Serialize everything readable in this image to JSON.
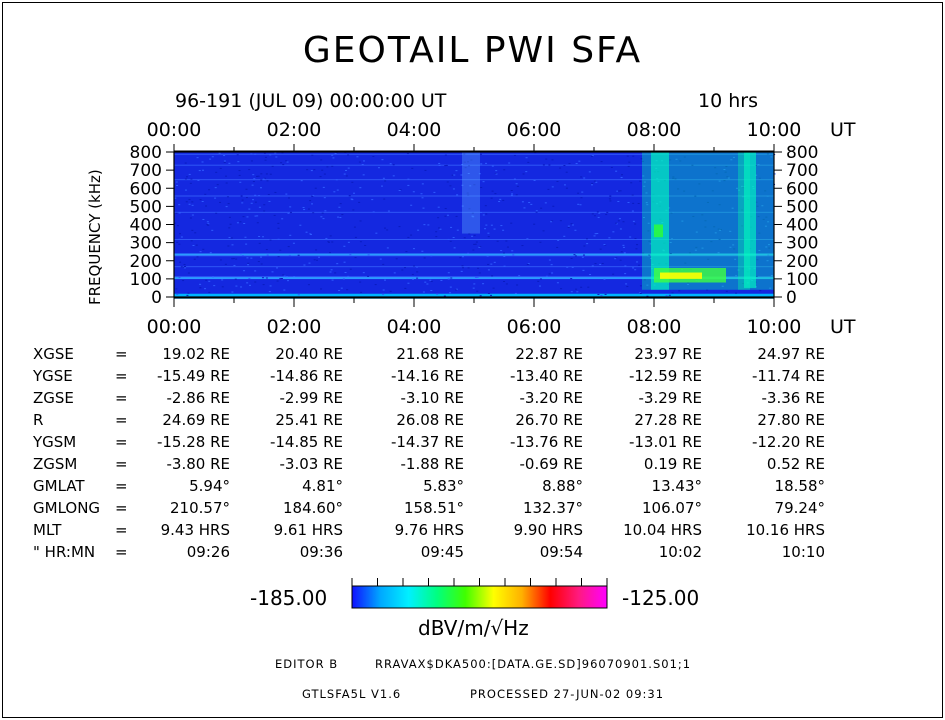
{
  "header": {
    "title": "GEOTAIL PWI SFA",
    "start": "96-191 (JUL 09) 00:00:00 UT",
    "duration": "10 hrs"
  },
  "chart_data": {
    "type": "heatmap",
    "title": "GEOTAIL PWI SFA",
    "xlabel": "UT",
    "ylabel": "FREQUENCY (kHz)",
    "x_ticks": [
      "00:00",
      "02:00",
      "04:00",
      "06:00",
      "08:00",
      "10:00"
    ],
    "x_unit": "UT",
    "xlim_hours": [
      0,
      10
    ],
    "y_ticks": [
      0,
      100,
      200,
      300,
      400,
      500,
      600,
      700,
      800
    ],
    "ylim": [
      0,
      800
    ],
    "colorbar": {
      "min": "-185.00",
      "max": "-125.00",
      "unit": "dBV/m/√Hz",
      "colors": [
        "#1010ff",
        "#00a8ff",
        "#00f0ff",
        "#00ff80",
        "#40ff00",
        "#ffff00",
        "#ffb000",
        "#ff0000",
        "#ff1a80",
        "#ff00ff"
      ]
    },
    "features": [
      {
        "hours": [
          7.8,
          9.6
        ],
        "freq": [
          40,
          800
        ],
        "level": "high"
      },
      {
        "hours": [
          9.4,
          10.0
        ],
        "freq": [
          40,
          800
        ],
        "level": "high"
      },
      {
        "hours": [
          4.8,
          5.1
        ],
        "freq": [
          350,
          800
        ],
        "level": "mid"
      }
    ]
  },
  "ephemeris": {
    "rows": [
      {
        "name": "XGSE",
        "eq": "=",
        "values": [
          "19.02 RE",
          "20.40 RE",
          "21.68 RE",
          "22.87 RE",
          "23.97 RE",
          "24.97 RE"
        ]
      },
      {
        "name": "YGSE",
        "eq": "=",
        "values": [
          "-15.49 RE",
          "-14.86 RE",
          "-14.16 RE",
          "-13.40 RE",
          "-12.59 RE",
          "-11.74 RE"
        ]
      },
      {
        "name": "ZGSE",
        "eq": "=",
        "values": [
          "-2.86 RE",
          "-2.99 RE",
          "-3.10 RE",
          "-3.20 RE",
          "-3.29 RE",
          "-3.36 RE"
        ]
      },
      {
        "name": "R",
        "eq": "=",
        "values": [
          "24.69 RE",
          "25.41 RE",
          "26.08 RE",
          "26.70 RE",
          "27.28 RE",
          "27.80 RE"
        ]
      },
      {
        "name": "YGSM",
        "eq": "=",
        "values": [
          "-15.28 RE",
          "-14.85 RE",
          "-14.37 RE",
          "-13.76 RE",
          "-13.01 RE",
          "-12.20 RE"
        ]
      },
      {
        "name": "ZGSM",
        "eq": "=",
        "values": [
          "-3.80 RE",
          "-3.03 RE",
          "-1.88 RE",
          "-0.69 RE",
          "0.19 RE",
          "0.52 RE"
        ]
      },
      {
        "name": "GMLAT",
        "eq": "=",
        "values": [
          "5.94°",
          "4.81°",
          "5.83°",
          "8.88°",
          "13.43°",
          "18.58°"
        ]
      },
      {
        "name": "GMLONG",
        "eq": "=",
        "values": [
          "210.57°",
          "184.60°",
          "158.51°",
          "132.37°",
          "106.07°",
          "79.24°"
        ]
      },
      {
        "name": "MLT",
        "eq": "=",
        "values": [
          "9.43 HRS",
          "9.61 HRS",
          "9.76 HRS",
          "9.90 HRS",
          "10.04 HRS",
          "10.16 HRS"
        ]
      },
      {
        "name": "\" HR:MN",
        "eq": "=",
        "values": [
          "09:26",
          "09:36",
          "09:45",
          "09:54",
          "10:02",
          "10:10"
        ]
      }
    ]
  },
  "footer": {
    "editor": "EDITOR B",
    "path": "RRAVAX$DKA500:[DATA.GE.SD]96070901.S01;1",
    "program": "GTLSFA5L V1.6",
    "processed": "PROCESSED 27-JUN-02  09:31"
  }
}
